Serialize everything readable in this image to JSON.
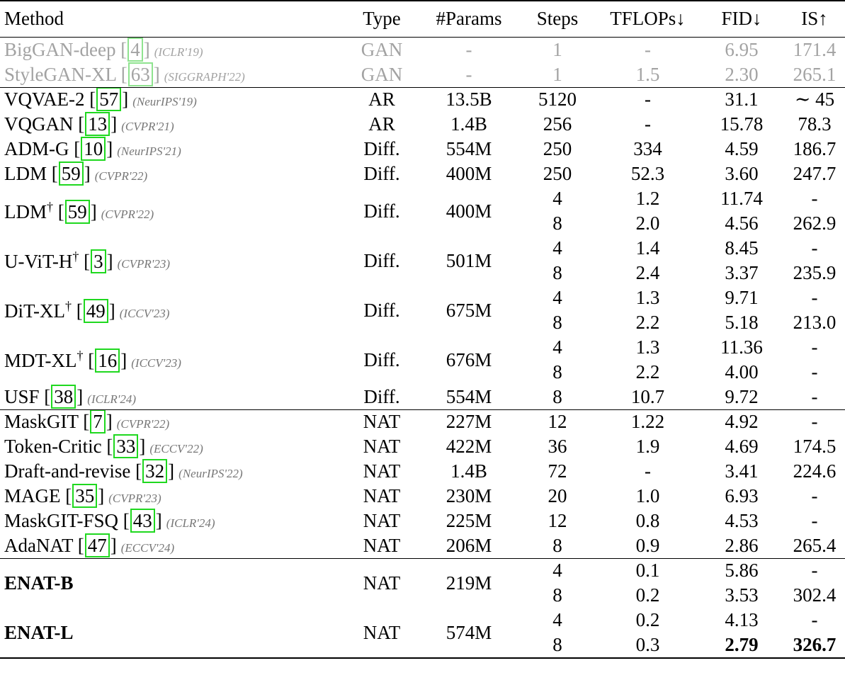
{
  "headers": {
    "method": "Method",
    "type": "Type",
    "params": "#Params",
    "steps": "Steps",
    "tflops": "TFLOPs↓",
    "fid": "FID↓",
    "is": "IS↑"
  },
  "groups": [
    {
      "muted": true,
      "rows": [
        {
          "name": "BigGAN-deep",
          "dagger": "",
          "ref": "4",
          "venue": "(ICLR'19)",
          "type": "GAN",
          "params": "-",
          "subs": [
            {
              "steps": "1",
              "tflops": "-",
              "fid": "6.95",
              "is": "171.4"
            }
          ]
        },
        {
          "name": "StyleGAN-XL",
          "dagger": "",
          "ref": "63",
          "venue": "(SIGGRAPH'22)",
          "type": "GAN",
          "params": "-",
          "subs": [
            {
              "steps": "1",
              "tflops": "1.5",
              "fid": "2.30",
              "is": "265.1"
            }
          ]
        }
      ]
    },
    {
      "muted": false,
      "rows": [
        {
          "name": "VQVAE-2",
          "dagger": "",
          "ref": "57",
          "venue": "(NeurIPS'19)",
          "type": "AR",
          "params": "13.5B",
          "subs": [
            {
              "steps": "5120",
              "tflops": "-",
              "fid": "31.1",
              "is": "∼ 45"
            }
          ]
        },
        {
          "name": "VQGAN",
          "dagger": "",
          "ref": "13",
          "venue": "(CVPR'21)",
          "type": "AR",
          "params": "1.4B",
          "subs": [
            {
              "steps": "256",
              "tflops": "-",
              "fid": "15.78",
              "is": "78.3"
            }
          ]
        },
        {
          "name": "ADM-G",
          "dagger": "",
          "ref": "10",
          "venue": "(NeurIPS'21)",
          "type": "Diff.",
          "params": "554M",
          "subs": [
            {
              "steps": "250",
              "tflops": "334",
              "fid": "4.59",
              "is": "186.7"
            }
          ]
        },
        {
          "name": "LDM",
          "dagger": "",
          "ref": "59",
          "venue": "(CVPR'22)",
          "type": "Diff.",
          "params": "400M",
          "subs": [
            {
              "steps": "250",
              "tflops": "52.3",
              "fid": "3.60",
              "is": "247.7"
            }
          ]
        },
        {
          "name": "LDM",
          "dagger": "†",
          "ref": "59",
          "venue": "(CVPR'22)",
          "type": "Diff.",
          "params": "400M",
          "subs": [
            {
              "steps": "4",
              "tflops": "1.2",
              "fid": "11.74",
              "is": "-"
            },
            {
              "steps": "8",
              "tflops": "2.0",
              "fid": "4.56",
              "is": "262.9"
            }
          ]
        },
        {
          "name": "U-ViT-H",
          "dagger": "†",
          "ref": "3",
          "venue": "(CVPR'23)",
          "type": "Diff.",
          "params": "501M",
          "subs": [
            {
              "steps": "4",
              "tflops": "1.4",
              "fid": "8.45",
              "is": "-"
            },
            {
              "steps": "8",
              "tflops": "2.4",
              "fid": "3.37",
              "is": "235.9"
            }
          ]
        },
        {
          "name": "DiT-XL",
          "dagger": "†",
          "ref": "49",
          "venue": "(ICCV'23)",
          "type": "Diff.",
          "params": "675M",
          "subs": [
            {
              "steps": "4",
              "tflops": "1.3",
              "fid": "9.71",
              "is": "-"
            },
            {
              "steps": "8",
              "tflops": "2.2",
              "fid": "5.18",
              "is": "213.0"
            }
          ]
        },
        {
          "name": "MDT-XL",
          "dagger": "†",
          "ref": "16",
          "venue": "(ICCV'23)",
          "type": "Diff.",
          "params": "676M",
          "subs": [
            {
              "steps": "4",
              "tflops": "1.3",
              "fid": "11.36",
              "is": "-"
            },
            {
              "steps": "8",
              "tflops": "2.2",
              "fid": "4.00",
              "is": "-"
            }
          ]
        },
        {
          "name": "USF",
          "dagger": "",
          "ref": "38",
          "venue": "(ICLR'24)",
          "type": "Diff.",
          "params": "554M",
          "subs": [
            {
              "steps": "8",
              "tflops": "10.7",
              "fid": "9.72",
              "is": "-"
            }
          ]
        }
      ]
    },
    {
      "muted": false,
      "rows": [
        {
          "name": "MaskGIT",
          "dagger": "",
          "ref": "7",
          "venue": "(CVPR'22)",
          "type": "NAT",
          "params": "227M",
          "subs": [
            {
              "steps": "12",
              "tflops": "1.22",
              "fid": "4.92",
              "is": "-"
            }
          ]
        },
        {
          "name": "Token-Critic",
          "dagger": "",
          "ref": "33",
          "venue": "(ECCV'22)",
          "type": "NAT",
          "params": "422M",
          "subs": [
            {
              "steps": "36",
              "tflops": "1.9",
              "fid": "4.69",
              "is": "174.5"
            }
          ]
        },
        {
          "name": "Draft-and-revise",
          "dagger": "",
          "ref": "32",
          "venue": "(NeurIPS'22)",
          "type": "NAT",
          "params": "1.4B",
          "subs": [
            {
              "steps": "72",
              "tflops": "-",
              "fid": "3.41",
              "is": "224.6"
            }
          ]
        },
        {
          "name": "MAGE",
          "dagger": "",
          "ref": "35",
          "venue": "(CVPR'23)",
          "type": "NAT",
          "params": "230M",
          "subs": [
            {
              "steps": "20",
              "tflops": "1.0",
              "fid": "6.93",
              "is": "-"
            }
          ]
        },
        {
          "name": "MaskGIT-FSQ",
          "dagger": "",
          "ref": "43",
          "venue": "(ICLR'24)",
          "type": "NAT",
          "params": "225M",
          "subs": [
            {
              "steps": "12",
              "tflops": "0.8",
              "fid": "4.53",
              "is": "-"
            }
          ]
        },
        {
          "name": "AdaNAT",
          "dagger": "",
          "ref": "47",
          "venue": "(ECCV'24)",
          "type": "NAT",
          "params": "206M",
          "subs": [
            {
              "steps": "8",
              "tflops": "0.9",
              "fid": "2.86",
              "is": "265.4"
            }
          ]
        }
      ]
    },
    {
      "muted": false,
      "rows": [
        {
          "name": "ENAT-B",
          "bold": true,
          "type": "NAT",
          "params": "219M",
          "subs": [
            {
              "steps": "4",
              "tflops": "0.1",
              "fid": "5.86",
              "is": "-"
            },
            {
              "steps": "8",
              "tflops": "0.2",
              "fid": "3.53",
              "is": "302.4"
            }
          ]
        },
        {
          "name": "ENAT-L",
          "bold": true,
          "type": "NAT",
          "params": "574M",
          "subs": [
            {
              "steps": "4",
              "tflops": "0.2",
              "fid": "4.13",
              "is": "-"
            },
            {
              "steps": "8",
              "tflops": "0.3",
              "fid": "2.79",
              "is": "326.7",
              "bold_fid": true,
              "bold_is": true
            }
          ]
        }
      ]
    }
  ]
}
